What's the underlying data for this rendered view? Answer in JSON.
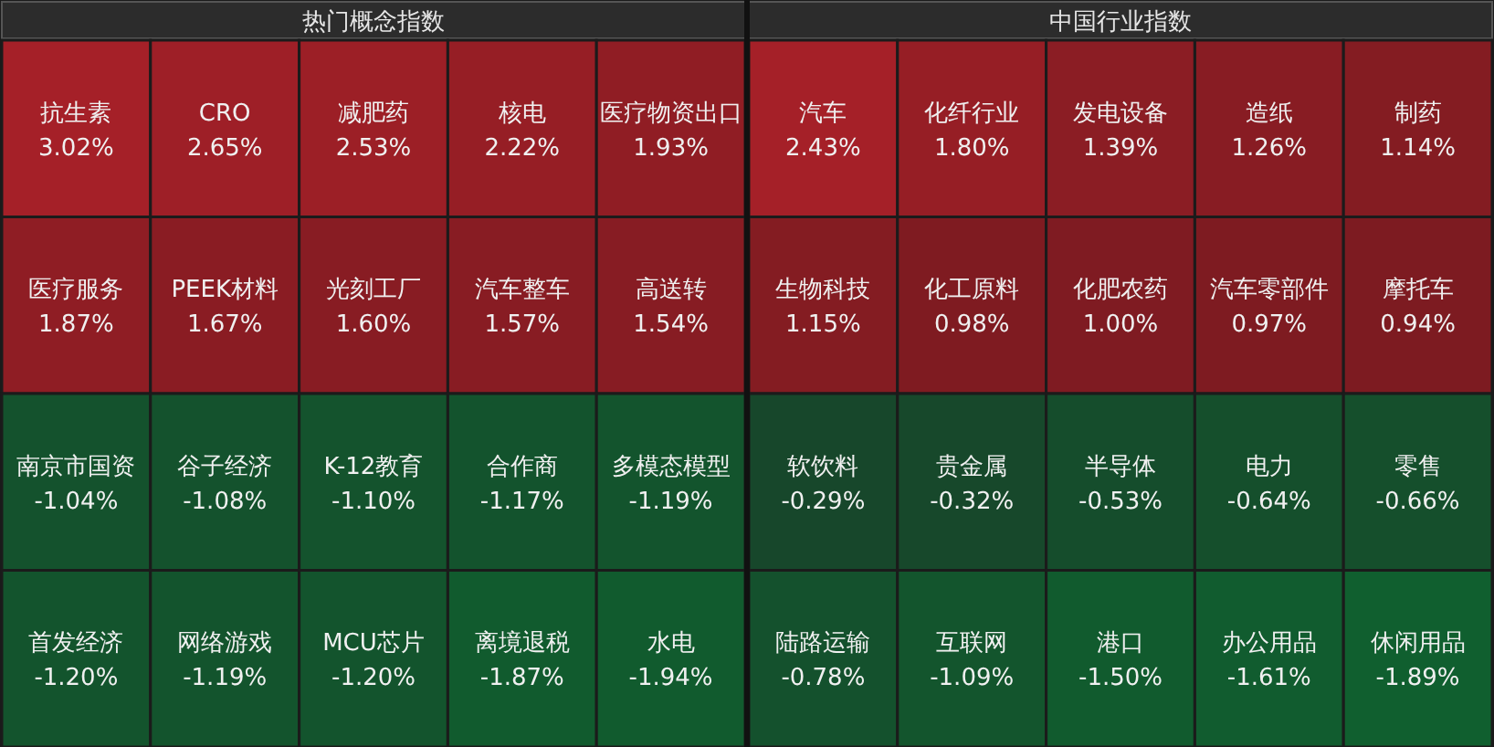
{
  "chart_data": [
    {
      "type": "other",
      "title": "热门概念指数",
      "categories": [
        "抗生素",
        "CRO",
        "减肥药",
        "核电",
        "医疗物资出口",
        "医疗服务",
        "PEEK材料",
        "光刻工厂",
        "汽车整车",
        "高送转",
        "南京市国资",
        "谷子经济",
        "K-12教育",
        "合作商",
        "多模态模型",
        "首发经济",
        "网络游戏",
        "MCU芯片",
        "离境退税",
        "水电"
      ],
      "values": [
        3.02,
        2.65,
        2.53,
        2.22,
        1.93,
        1.87,
        1.67,
        1.6,
        1.57,
        1.54,
        -1.04,
        -1.08,
        -1.1,
        -1.17,
        -1.19,
        -1.2,
        -1.19,
        -1.2,
        -1.87,
        -1.94
      ],
      "value_labels": [
        "3.02%",
        "2.65%",
        "2.53%",
        "2.22%",
        "1.93%",
        "1.87%",
        "1.67%",
        "1.60%",
        "1.57%",
        "1.54%",
        "-1.04%",
        "-1.08%",
        "-1.10%",
        "-1.17%",
        "-1.19%",
        "-1.20%",
        "-1.19%",
        "-1.20%",
        "-1.87%",
        "-1.94%"
      ]
    },
    {
      "type": "other",
      "title": "中国行业指数",
      "categories": [
        "汽车",
        "化纤行业",
        "发电设备",
        "造纸",
        "制药",
        "生物科技",
        "化工原料",
        "化肥农药",
        "汽车零部件",
        "摩托车",
        "软饮料",
        "贵金属",
        "半导体",
        "电力",
        "零售",
        "陆路运输",
        "互联网",
        "港口",
        "办公用品",
        "休闲用品"
      ],
      "values": [
        2.43,
        1.8,
        1.39,
        1.26,
        1.14,
        1.15,
        0.98,
        1.0,
        0.97,
        0.94,
        -0.29,
        -0.32,
        -0.53,
        -0.64,
        -0.66,
        -0.78,
        -1.09,
        -1.5,
        -1.61,
        -1.89
      ],
      "value_labels": [
        "2.43%",
        "1.80%",
        "1.39%",
        "1.26%",
        "1.14%",
        "1.15%",
        "0.98%",
        "1.00%",
        "0.97%",
        "0.94%",
        "-0.29%",
        "-0.32%",
        "-0.53%",
        "-0.64%",
        "-0.66%",
        "-0.78%",
        "-1.09%",
        "-1.50%",
        "-1.61%",
        "-1.89%"
      ]
    }
  ]
}
